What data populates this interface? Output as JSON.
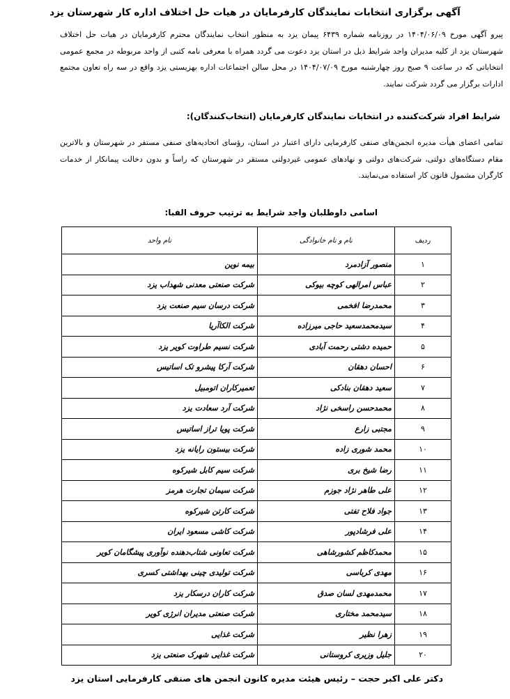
{
  "title": "آگهی برگزاری انتخابات نمایندگان کارفرمایان در هیات حل اختلاف اداره کار شهرستان یزد",
  "intro": "پیرو آگهی مورخ ۱۴۰۴/۰۶/۰۹ در روزنامه شماره ۶۴۳۹ پیمان یزد به منظور انتخاب نمایندگان محترم کارفرمایان در هیات حل اختلاف شهرستان یزد از کلیه مدیران واجد شرایط ذیل در استان یزد دعوت می گردد همراه با معرفی نامه کتبی از واحد مربوطه در مجمع عمومی انتخاباتی که در ساعت ۹ صبح روز چهارشنبه مورخ ۱۴۰۴/۰۷/۰۹ در محل سالن اجتماعات اداره بهزیستی یزد واقع در سه راه تعاون مجتمع ادارات برگزار می گردد شرکت نمایند.",
  "conditions_heading": "شرایط افراد شرکت‌کننده در انتخابات نمایندگان کارفرمایان (انتخاب‌کنندگان):",
  "conditions_text": "تمامی اعضای هیأت مدیره انجمن‌های صنفی کارفرمایی دارای اعتبار در استان، رؤسای اتحادیه‌های صنفی مستقر در شهرستان و بالاترین مقام دستگاه‌های دولتی، شرکت‌های دولتی و نهادهای عمومی غیردولتی مستقر در شهرستان که راساً و بدون دخالت پیمانکار از خدمات کارگران مشمول قانون کار استفاده می‌نمایند.",
  "candidates_heading": "اسامی داوطلبان واجد شرایط به ترتیب حروف الفبا:",
  "table": {
    "headers": {
      "index": "ردیف",
      "name": "نام و نام خانوادگی",
      "unit": "نام واحد"
    },
    "rows": [
      {
        "index": "۱",
        "name": "منصور آزادمرد",
        "unit": "بیمه نوین"
      },
      {
        "index": "۲",
        "name": "عباس امرالهی کوچه بیوکی",
        "unit": "شرکت صنعتی معدنی شهداب یزد"
      },
      {
        "index": "۳",
        "name": "محمدرضا افخمی",
        "unit": "شرکت درسان سیم صنعت یزد"
      },
      {
        "index": "۴",
        "name": "سیدمحمدسعید حاجی میرزاده",
        "unit": "شرکت الکاآریا"
      },
      {
        "index": "۵",
        "name": "حمیده دشتی رحمت آبادی",
        "unit": "شرکت نسیم طراوت کویر یزد"
      },
      {
        "index": "۶",
        "name": "احسان دهقان",
        "unit": "شرکت آرکا پیشرو تک اساتیس"
      },
      {
        "index": "۷",
        "name": "سعید دهقان بنادکی",
        "unit": "تعمیرکاران اتومبیل"
      },
      {
        "index": "۸",
        "name": "محمدحسن راسخی نژاد",
        "unit": "شرکت آرد سعادت یزد"
      },
      {
        "index": "۹",
        "name": "مجتبی زارع",
        "unit": "شرکت پویا تراز اساتیس"
      },
      {
        "index": "۱۰",
        "name": "محمد شوری زاده",
        "unit": "شرکت بیستون رایانه یزد"
      },
      {
        "index": "۱۱",
        "name": "رضا شیخ بری",
        "unit": "شرکت سیم کابل شیرکوه"
      },
      {
        "index": "۱۲",
        "name": "علی طاهر نژاد جوزم",
        "unit": "شرکت سیمان تجارت هرمز"
      },
      {
        "index": "۱۳",
        "name": "جواد فلاح تفتی",
        "unit": "شرکت کارتن شیرکوه"
      },
      {
        "index": "۱۴",
        "name": "علی فرشادپور",
        "unit": "شرکت کاشی مسعود ایران"
      },
      {
        "index": "۱۵",
        "name": "محمدکاظم کشورشاهی",
        "unit": "شرکت تعاونی شتاب‌دهنده نوآوری پیشگامان کویر"
      },
      {
        "index": "۱۶",
        "name": "مهدی کرباسی",
        "unit": "شرکت تولیدی چینی بهداشتی کسری"
      },
      {
        "index": "۱۷",
        "name": "محمدمهدی لسان صدق",
        "unit": "شرکت کاران درسکار یزد"
      },
      {
        "index": "۱۸",
        "name": "سیدمحمد مختاری",
        "unit": "شرکت صنعتی مدیران انرژی کویر"
      },
      {
        "index": "۱۹",
        "name": "زهرا نظیر",
        "unit": "شرکت غذایی"
      },
      {
        "index": "۲۰",
        "name": "جلیل وزیری کروستانی",
        "unit": "شرکت غذایی شهرک صنعتی یزد"
      }
    ]
  },
  "signature": "دکتر علی اکبر حجت – رئیس هیئت مدیره کانون انجمن های صنفی کارفرمایی استان یزد"
}
